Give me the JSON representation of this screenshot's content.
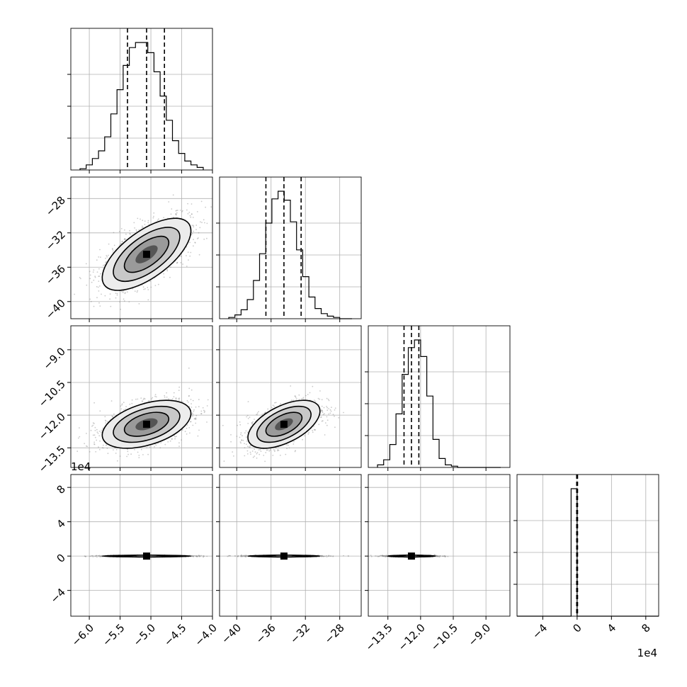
{
  "chart_data": {
    "type": "corner",
    "parameters": 4,
    "histogram_quantiles": [
      {
        "q16": -5.38,
        "q50": -5.07,
        "q84": -4.78
      },
      {
        "q16": -36.6,
        "q50": -34.5,
        "q84": -32.5
      },
      {
        "q16": -12.76,
        "q50": -12.42,
        "q84": -12.08
      },
      {
        "q16": -0.05,
        "q50": 0.0,
        "q84": 0.05
      }
    ],
    "axes": [
      {
        "range": [
          -6.3,
          -4.0
        ],
        "ticks": [
          -6.0,
          -5.5,
          -5.0,
          -4.5,
          -4.0
        ],
        "tick_labels": [
          "−6.0",
          "−5.5",
          "−5.0",
          "−4.5",
          "−4.0"
        ]
      },
      {
        "range": [
          -42.0,
          -25.5
        ],
        "ticks": [
          -40,
          -36,
          -32,
          -28
        ],
        "tick_labels": [
          "−40",
          "−36",
          "−32",
          "−28"
        ]
      },
      {
        "range": [
          -14.4,
          -7.9
        ],
        "ticks": [
          -13.5,
          -12.0,
          -10.5,
          -9.0
        ],
        "tick_labels": [
          "−13.5",
          "−12.0",
          "−10.5",
          "−9.0"
        ]
      },
      {
        "range": [
          -7.0,
          9.5
        ],
        "ticks": [
          -4,
          0,
          4,
          8
        ],
        "tick_labels": [
          "−4",
          "0",
          "4",
          "8"
        ],
        "offset_label": "1e4"
      }
    ],
    "histograms": [
      [
        0.01,
        0.04,
        0.09,
        0.15,
        0.26,
        0.44,
        0.63,
        0.82,
        0.96,
        1.0,
        1.0,
        0.92,
        0.77,
        0.58,
        0.39,
        0.23,
        0.13,
        0.07,
        0.04,
        0.02
      ],
      [
        0.01,
        0.03,
        0.07,
        0.15,
        0.3,
        0.51,
        0.75,
        0.94,
        1.0,
        0.93,
        0.76,
        0.54,
        0.33,
        0.17,
        0.08,
        0.04,
        0.02,
        0.01,
        0.0,
        0.0
      ],
      [
        0.02,
        0.06,
        0.18,
        0.42,
        0.73,
        0.94,
        1.0,
        0.87,
        0.56,
        0.22,
        0.07,
        0.02,
        0.01,
        0.0,
        0.0,
        0.0,
        0.0,
        0.0,
        0.0,
        0.0
      ],
      [
        0.0,
        0.0,
        0.0,
        0.0,
        0.0,
        0.0,
        1.0,
        0.0,
        0.0,
        0.0,
        0.0,
        0.0,
        0.0,
        0.0,
        0.0,
        0.0,
        0.0,
        0.0,
        0.0,
        0.0
      ]
    ],
    "pairs": [
      {
        "row": 1,
        "col": 0,
        "center": [
          -5.07,
          -34.5
        ],
        "sigma": [
          0.36,
          2.1
        ],
        "corr": 0.65
      },
      {
        "row": 2,
        "col": 0,
        "center": [
          -5.07,
          -12.42
        ],
        "sigma": [
          0.36,
          0.55
        ],
        "corr": 0.45
      },
      {
        "row": 2,
        "col": 1,
        "center": [
          -34.5,
          -12.42
        ],
        "sigma": [
          2.1,
          0.55
        ],
        "corr": 0.55
      },
      {
        "row": 3,
        "col": 0,
        "center": [
          -5.07,
          0.0
        ],
        "sigma": [
          0.36,
          0.04
        ],
        "corr": 0.0
      },
      {
        "row": 3,
        "col": 1,
        "center": [
          -34.5,
          0.0
        ],
        "sigma": [
          2.1,
          0.04
        ],
        "corr": 0.0
      },
      {
        "row": 3,
        "col": 2,
        "center": [
          -12.42,
          0.0
        ],
        "sigma": [
          0.55,
          0.04
        ],
        "corr": 0.0
      }
    ],
    "grid": true,
    "legend": "none",
    "xlabel": "",
    "ylabel": "",
    "title": ""
  }
}
